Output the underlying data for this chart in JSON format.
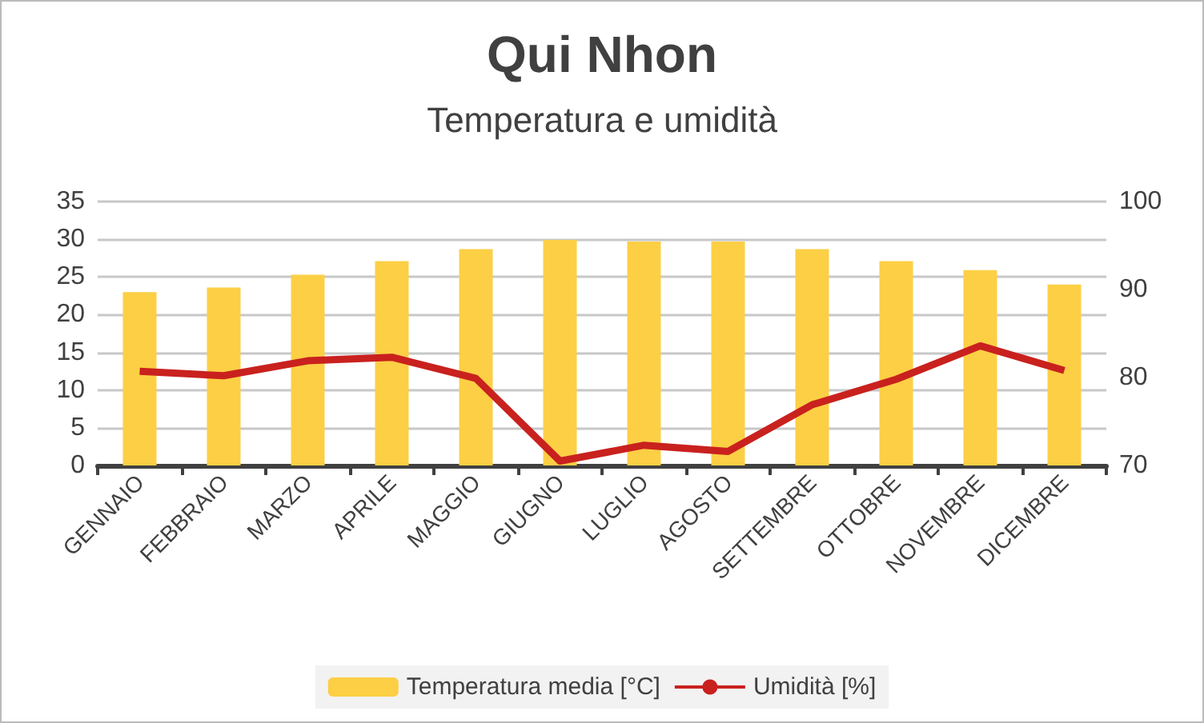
{
  "chart_data": {
    "type": "bar",
    "title": "Qui Nhon",
    "subtitle": "Temperatura e umidità",
    "categories": [
      "GENNAIO",
      "FEBBRAIO",
      "MARZO",
      "APRILE",
      "MAGGIO",
      "GIUGNO",
      "LUGLIO",
      "AGOSTO",
      "SETTEMBRE",
      "OTTOBRE",
      "NOVEMBRE",
      "DICEMBRE"
    ],
    "series": [
      {
        "name": "Temperatura media [°C]",
        "color": "#fccf45",
        "values": [
          23.0,
          23.6,
          25.3,
          27.1,
          28.7,
          29.9,
          29.7,
          29.7,
          28.7,
          27.1,
          25.9,
          24.0
        ]
      },
      {
        "name": "Umidità [%]",
        "type": "line",
        "axis": "y2",
        "color": "#c9211e",
        "values": [
          80.7,
          80.2,
          81.9,
          82.3,
          79.9,
          70.5,
          72.3,
          71.6,
          76.9,
          79.8,
          83.6,
          80.8
        ]
      }
    ],
    "ylim": [
      0,
      35
    ],
    "yticks": [
      0,
      5,
      10,
      15,
      20,
      25,
      30,
      35
    ],
    "y2lim": [
      70,
      100
    ],
    "y2ticks": [
      70,
      80,
      90,
      100
    ],
    "grid": "y",
    "legend": "bottom",
    "marker": "none"
  }
}
